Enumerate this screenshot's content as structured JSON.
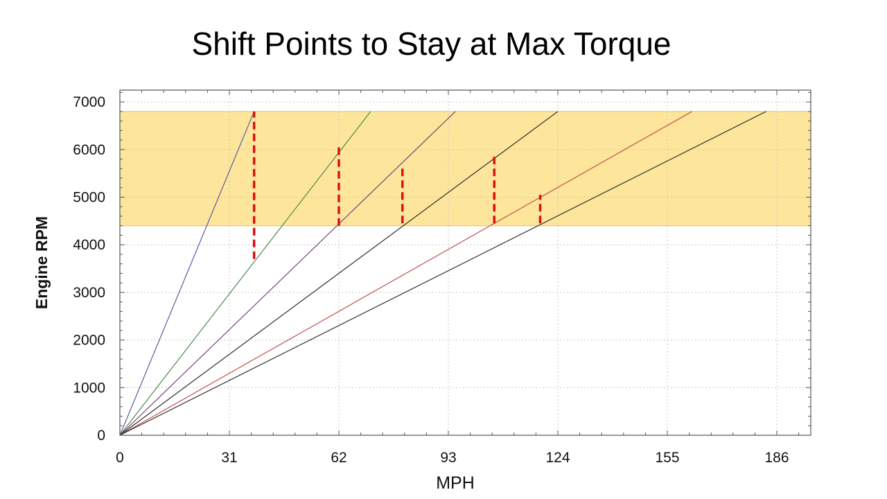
{
  "slide": {
    "title": "Shift Points to Stay at Max Torque"
  },
  "chart_data": {
    "type": "line",
    "title": "Shift Points to Stay at Max Torque",
    "xlabel": "MPH",
    "ylabel": "Engine RPM",
    "xlim": [
      0,
      196
    ],
    "ylim": [
      0,
      7200
    ],
    "x_ticks": [
      0,
      31,
      62,
      93,
      124,
      155,
      186
    ],
    "y_ticks": [
      0,
      1000,
      2000,
      3000,
      4000,
      5000,
      6000,
      7000
    ],
    "grid": true,
    "band": {
      "y_from": 4400,
      "y_to": 6800,
      "color": "#fde69b"
    },
    "series": [
      {
        "color": "#5a5aa0",
        "points": [
          [
            0,
            0
          ],
          [
            38,
            6800
          ]
        ]
      },
      {
        "color": "#4c8a4c",
        "points": [
          [
            0,
            0
          ],
          [
            71,
            6800
          ]
        ]
      },
      {
        "color": "#7a3f7a",
        "points": [
          [
            0,
            0
          ],
          [
            95,
            6800
          ]
        ]
      },
      {
        "color": "#2b2b2b",
        "points": [
          [
            0,
            0
          ],
          [
            124,
            6800
          ]
        ]
      },
      {
        "color": "#c0504d",
        "points": [
          [
            0,
            0
          ],
          [
            162,
            6800
          ]
        ]
      },
      {
        "color": "#333333",
        "points": [
          [
            0,
            0
          ],
          [
            183,
            6800
          ]
        ]
      }
    ],
    "shift_markers": {
      "color": "#dd1111",
      "segments": [
        {
          "x": 38,
          "y_from": 3700,
          "y_to": 6800
        },
        {
          "x": 62,
          "y_from": 4400,
          "y_to": 6050
        },
        {
          "x": 80,
          "y_from": 4450,
          "y_to": 5650
        },
        {
          "x": 106,
          "y_from": 4450,
          "y_to": 5850
        },
        {
          "x": 119,
          "y_from": 4450,
          "y_to": 5050
        }
      ]
    }
  }
}
